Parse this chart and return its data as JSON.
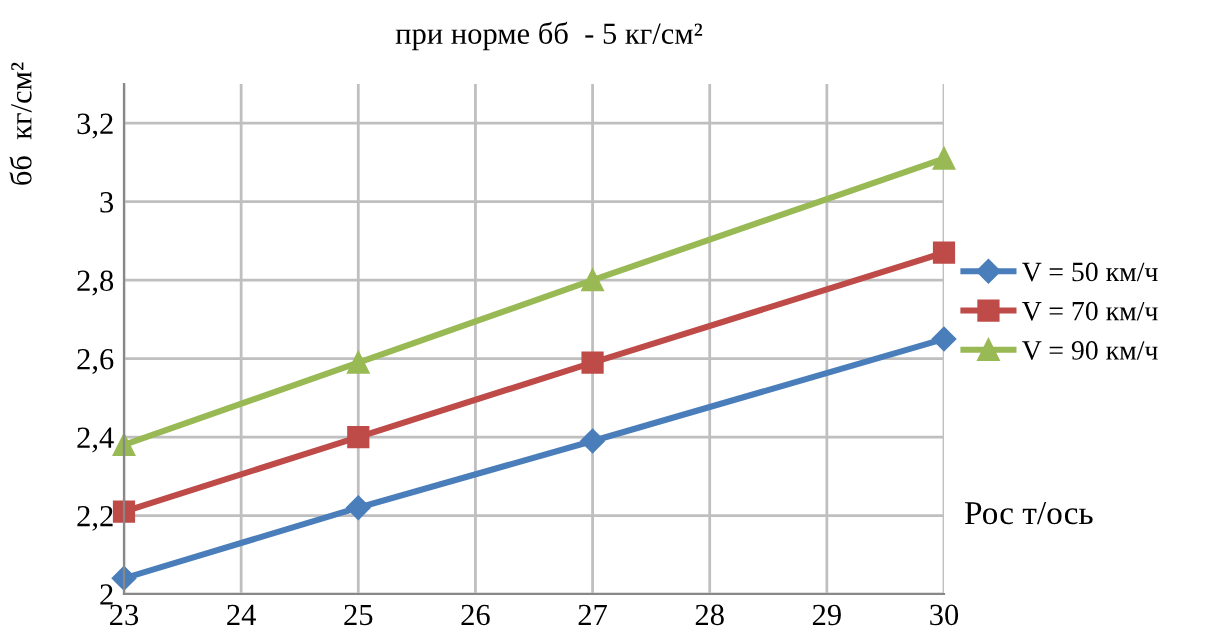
{
  "chart_data": {
    "type": "line",
    "title": "при норме бб  - 5 кг/см²",
    "xlabel": "Рос т/ось",
    "ylabel": "бб  кг/см²",
    "x": [
      23,
      25,
      27,
      30
    ],
    "series": [
      {
        "name": "V = 50 км/ч",
        "color": "#4a7ebb",
        "values": [
          2.04,
          2.22,
          2.39,
          2.65
        ],
        "marker": "diamond"
      },
      {
        "name": "V = 70 км/ч",
        "color": "#be4b48",
        "values": [
          2.21,
          2.4,
          2.59,
          2.87
        ],
        "marker": "square"
      },
      {
        "name": "V = 90 км/ч",
        "color": "#98b954",
        "values": [
          2.38,
          2.59,
          2.8,
          3.11
        ],
        "marker": "triangle"
      }
    ],
    "xlim": [
      23,
      30
    ],
    "xticks": [
      23,
      24,
      25,
      26,
      27,
      28,
      29,
      30
    ],
    "ylim": [
      2,
      3.3
    ],
    "yticks": [
      2,
      {
        "value": 2.2,
        "label": "2,2"
      },
      {
        "value": 2.4,
        "label": "2,4"
      },
      {
        "value": 2.6,
        "label": "2,6"
      },
      {
        "value": 2.8,
        "label": "2,8"
      },
      3,
      {
        "value": 3.2,
        "label": "3,2"
      }
    ],
    "grid": true,
    "legend": "right",
    "line_style": "solid"
  }
}
